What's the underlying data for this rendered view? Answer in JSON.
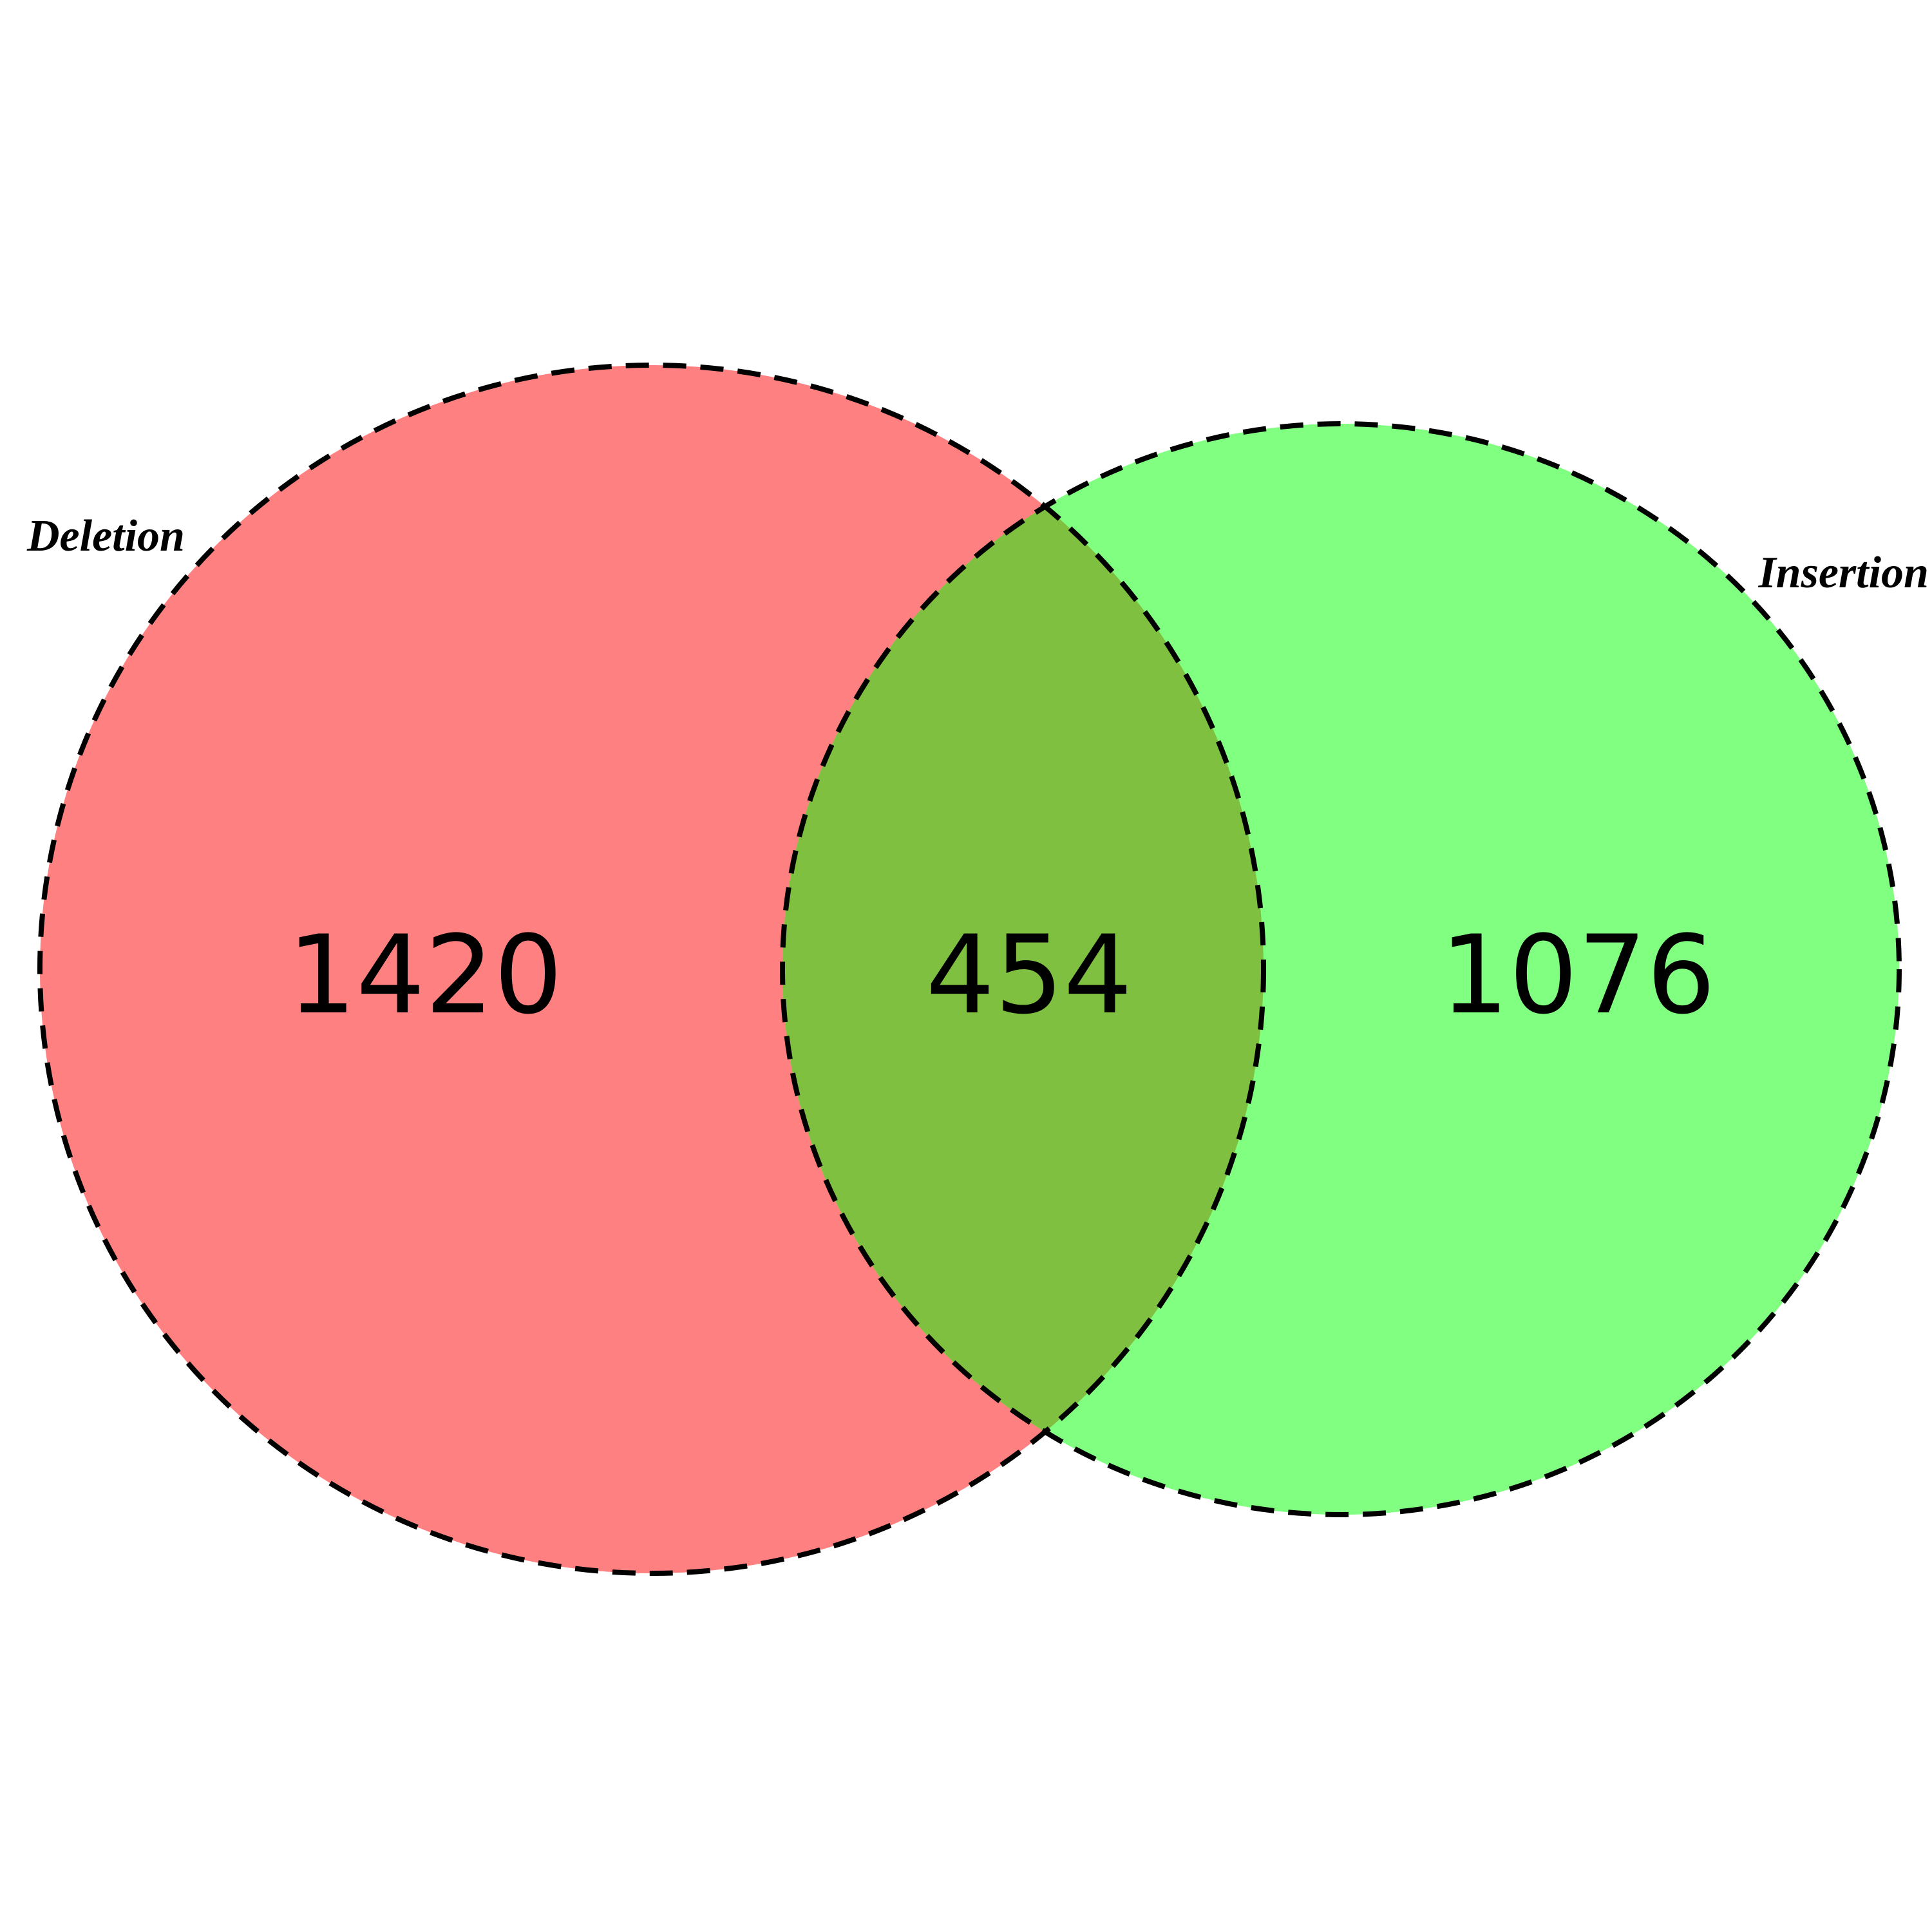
{
  "sets": [
    {
      "name": "Deletion",
      "color": "#ff8080"
    },
    {
      "name": "Insertion",
      "color": "#80ff80"
    }
  ],
  "overlap_color": "#80c040",
  "counts": {
    "deletion_only": "1420",
    "intersection": "454",
    "insertion_only": "1076"
  }
}
